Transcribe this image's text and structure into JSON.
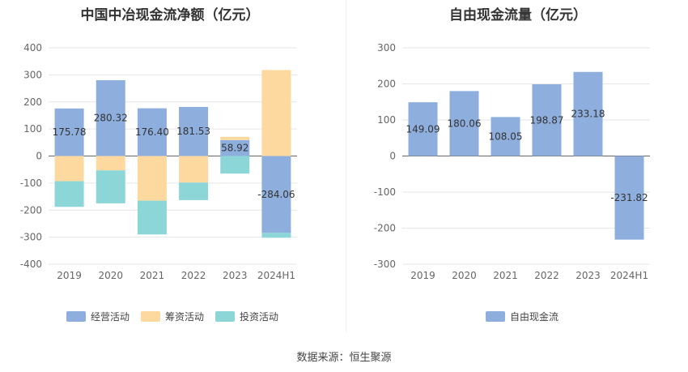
{
  "titles": {
    "left": "中国中冶现金流净额（亿元）",
    "right": "自由现金流量（亿元）"
  },
  "source": "数据来源：恒生聚源",
  "chart_data": [
    {
      "type": "bar",
      "stacked": true,
      "categories": [
        "2019",
        "2020",
        "2021",
        "2022",
        "2023",
        "2024H1"
      ],
      "ylim": [
        -400,
        400
      ],
      "yticks": [
        400,
        300,
        200,
        100,
        0,
        -100,
        -200,
        -300,
        -400
      ],
      "series": [
        {
          "name": "经营活动",
          "color": "#8eaedd",
          "values": [
            175.78,
            280.32,
            176.4,
            181.53,
            58.92,
            -284.06
          ]
        },
        {
          "name": "筹资活动",
          "color": "#fdd9a0",
          "values": [
            -93,
            -53,
            -165,
            -98,
            12,
            318
          ]
        },
        {
          "name": "投资活动",
          "color": "#8dd6d8",
          "values": [
            -95,
            -122,
            -125,
            -65,
            -65,
            -18
          ]
        }
      ],
      "data_labels_series": "经营活动",
      "data_labels": [
        "175.78",
        "280.32",
        "176.40",
        "181.53",
        "58.92",
        "-284.06"
      ],
      "legend": "bottom"
    },
    {
      "type": "bar",
      "categories": [
        "2019",
        "2020",
        "2021",
        "2022",
        "2023",
        "2024H1"
      ],
      "ylim": [
        -300,
        300
      ],
      "yticks": [
        300,
        200,
        100,
        0,
        -100,
        -200,
        -300
      ],
      "series": [
        {
          "name": "自由现金流",
          "color": "#8eaedd",
          "values": [
            149.09,
            180.06,
            108.05,
            198.87,
            233.18,
            -231.82
          ]
        }
      ],
      "data_labels": [
        "149.09",
        "180.06",
        "108.05",
        "198.87",
        "233.18",
        "-231.82"
      ],
      "legend": "bottom"
    }
  ]
}
